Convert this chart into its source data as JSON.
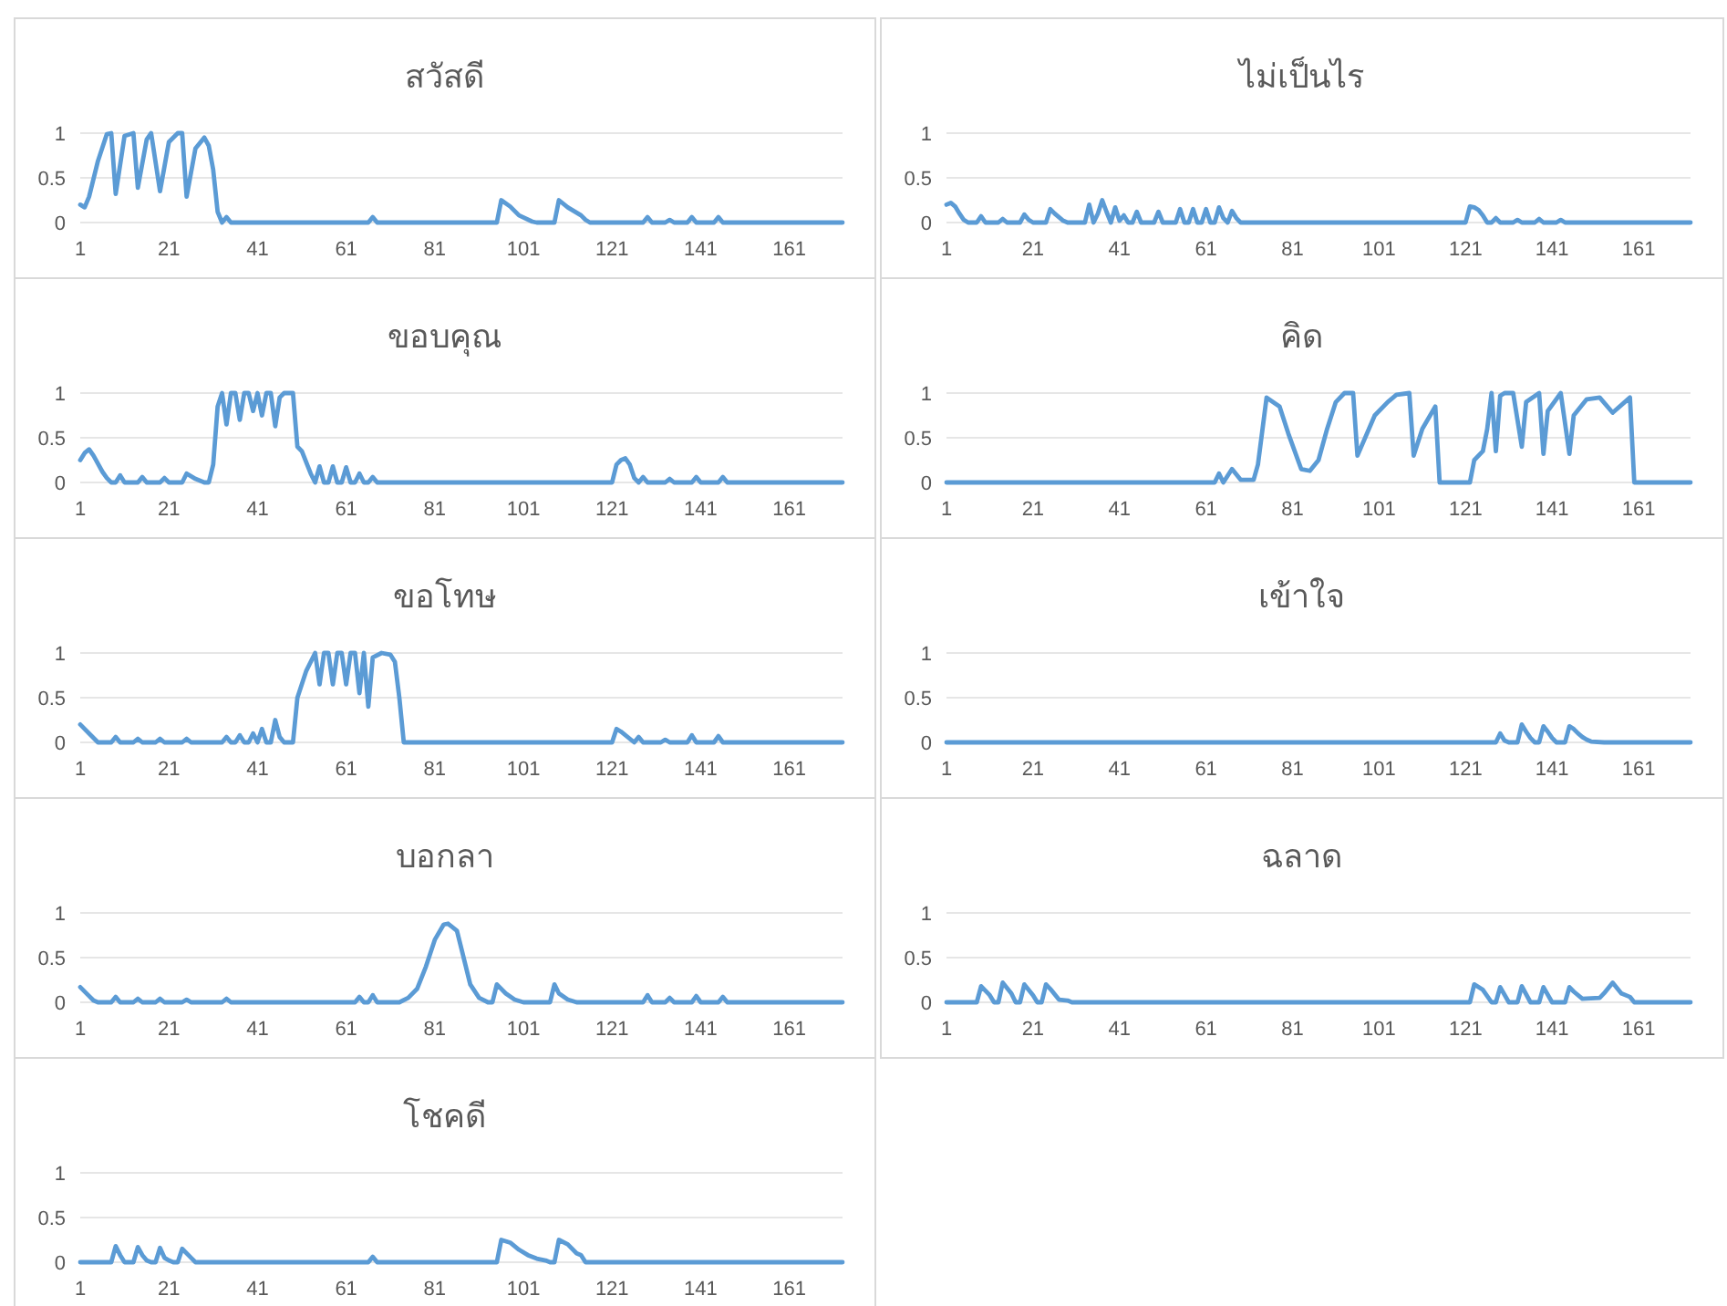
{
  "chart_data": [
    {
      "type": "line",
      "title": "สวัสดี",
      "color": "#5b9bd5",
      "xlim": [
        1,
        173
      ],
      "xticks": [
        1,
        21,
        41,
        61,
        81,
        101,
        121,
        141,
        161
      ],
      "ylim": [
        0,
        1
      ],
      "yticks": [
        0,
        0.5,
        1
      ],
      "grid": "y",
      "x": [
        1,
        2,
        3,
        5,
        7,
        8,
        9,
        11,
        13,
        14,
        16,
        17,
        19,
        21,
        23,
        24,
        25,
        27,
        29,
        30,
        31,
        32,
        33,
        34,
        35,
        66,
        67,
        68,
        95,
        96,
        98,
        100,
        103,
        104,
        108,
        109,
        111,
        114,
        115,
        116,
        128,
        129,
        130,
        133,
        134,
        135,
        138,
        139,
        140,
        144,
        145,
        146,
        173
      ],
      "values": [
        0.2,
        0.17,
        0.29,
        0.69,
        0.99,
        1,
        0.32,
        0.97,
        1,
        0.39,
        0.93,
        1,
        0.35,
        0.9,
        1,
        1,
        0.29,
        0.83,
        0.95,
        0.86,
        0.59,
        0.12,
        0,
        0.06,
        0,
        0,
        0.06,
        0,
        0,
        0.25,
        0.18,
        0.08,
        0.01,
        0,
        0,
        0.25,
        0.17,
        0.08,
        0.03,
        0,
        0,
        0.06,
        0,
        0,
        0.03,
        0,
        0,
        0.06,
        0,
        0,
        0.06,
        0,
        0
      ]
    },
    {
      "type": "line",
      "title": "ไม่เป็นไร",
      "color": "#5b9bd5",
      "xlim": [
        1,
        173
      ],
      "xticks": [
        1,
        21,
        41,
        61,
        81,
        101,
        121,
        141,
        161
      ],
      "ylim": [
        0,
        1
      ],
      "yticks": [
        0,
        0.5,
        1
      ],
      "grid": "y",
      "x": [
        1,
        2,
        3,
        4,
        5,
        6,
        8,
        9,
        10,
        13,
        14,
        15,
        18,
        19,
        20,
        21,
        24,
        25,
        26,
        28,
        29,
        33,
        34,
        35,
        36,
        37,
        38,
        39,
        40,
        41,
        42,
        43,
        44,
        45,
        46,
        49,
        50,
        51,
        54,
        55,
        56,
        57,
        58,
        59,
        60,
        61,
        62,
        63,
        64,
        65,
        66,
        67,
        68,
        69,
        121,
        122,
        123,
        124,
        125,
        126,
        127,
        128,
        129,
        132,
        133,
        134,
        137,
        138,
        139,
        142,
        143,
        144,
        173
      ],
      "values": [
        0.2,
        0.22,
        0.18,
        0.1,
        0.03,
        0,
        0,
        0.07,
        0,
        0,
        0.04,
        0,
        0,
        0.09,
        0.03,
        0,
        0,
        0.15,
        0.1,
        0.02,
        0,
        0,
        0.2,
        0,
        0.1,
        0.25,
        0.12,
        0,
        0.17,
        0.02,
        0.08,
        0,
        0,
        0.12,
        0,
        0,
        0.12,
        0,
        0,
        0.15,
        0,
        0,
        0.15,
        0,
        0,
        0.15,
        0,
        0,
        0.17,
        0.05,
        0,
        0.13,
        0.05,
        0,
        0,
        0.18,
        0.17,
        0.14,
        0.08,
        0,
        0,
        0.05,
        0,
        0,
        0.03,
        0,
        0,
        0.04,
        0,
        0,
        0.03,
        0,
        0
      ]
    },
    {
      "type": "line",
      "title": "ขอบคุณ",
      "color": "#5b9bd5",
      "xlim": [
        1,
        173
      ],
      "xticks": [
        1,
        21,
        41,
        61,
        81,
        101,
        121,
        141,
        161
      ],
      "ylim": [
        0,
        1
      ],
      "yticks": [
        0,
        0.5,
        1
      ],
      "grid": "y",
      "x": [
        1,
        2,
        3,
        4,
        6,
        7,
        8,
        9,
        10,
        11,
        14,
        15,
        16,
        19,
        20,
        21,
        24,
        25,
        27,
        29,
        30,
        31,
        32,
        33,
        34,
        35,
        36,
        37,
        38,
        39,
        40,
        41,
        42,
        43,
        44,
        45,
        46,
        47,
        48,
        49,
        50,
        51,
        53,
        54,
        55,
        56,
        57,
        58,
        59,
        60,
        61,
        62,
        63,
        64,
        65,
        66,
        67,
        68,
        121,
        122,
        123,
        124,
        125,
        126,
        127,
        128,
        129,
        133,
        134,
        135,
        139,
        140,
        141,
        145,
        146,
        147,
        173
      ],
      "values": [
        0.25,
        0.33,
        0.37,
        0.3,
        0.12,
        0.05,
        0,
        0,
        0.08,
        0,
        0,
        0.06,
        0,
        0,
        0.05,
        0,
        0,
        0.1,
        0.04,
        0,
        0,
        0.2,
        0.85,
        1,
        0.65,
        1,
        1,
        0.7,
        1,
        1,
        0.8,
        1,
        0.75,
        1,
        1,
        0.63,
        0.95,
        1,
        1,
        1,
        0.4,
        0.35,
        0.1,
        0,
        0.18,
        0,
        0,
        0.18,
        0,
        0,
        0.17,
        0,
        0,
        0.1,
        0,
        0,
        0.06,
        0,
        0,
        0.2,
        0.25,
        0.27,
        0.2,
        0.05,
        0,
        0.06,
        0,
        0,
        0.04,
        0,
        0,
        0.06,
        0,
        0,
        0.06,
        0,
        0
      ]
    },
    {
      "type": "line",
      "title": "คิด",
      "color": "#5b9bd5",
      "xlim": [
        1,
        173
      ],
      "xticks": [
        1,
        21,
        41,
        61,
        81,
        101,
        121,
        141,
        161
      ],
      "ylim": [
        0,
        1
      ],
      "yticks": [
        0,
        0.5,
        1
      ],
      "grid": "y",
      "x": [
        1,
        63,
        64,
        65,
        67,
        69,
        72,
        73,
        75,
        78,
        80,
        83,
        85,
        87,
        89,
        91,
        93,
        95,
        96,
        100,
        103,
        105,
        108,
        109,
        111,
        114,
        115,
        122,
        123,
        125,
        126,
        127,
        128,
        129,
        130,
        132,
        134,
        135,
        138,
        139,
        140,
        143,
        145,
        146,
        149,
        152,
        155,
        159,
        160,
        173
      ],
      "values": [
        0,
        0,
        0.1,
        0,
        0.15,
        0.03,
        0.03,
        0.2,
        0.95,
        0.85,
        0.55,
        0.15,
        0.13,
        0.25,
        0.6,
        0.9,
        1,
        1,
        0.3,
        0.75,
        0.9,
        0.98,
        1,
        0.3,
        0.6,
        0.85,
        0,
        0,
        0.25,
        0.35,
        0.6,
        1,
        0.35,
        0.97,
        1,
        1,
        0.4,
        0.9,
        1,
        0.32,
        0.8,
        1,
        0.32,
        0.75,
        0.93,
        0.95,
        0.78,
        0.95,
        0,
        0
      ]
    },
    {
      "type": "line",
      "title": "ขอโทษ",
      "color": "#5b9bd5",
      "xlim": [
        1,
        173
      ],
      "xticks": [
        1,
        21,
        41,
        61,
        81,
        101,
        121,
        141,
        161
      ],
      "ylim": [
        0,
        1
      ],
      "yticks": [
        0,
        0.5,
        1
      ],
      "grid": "y",
      "x": [
        1,
        3,
        5,
        8,
        9,
        10,
        13,
        14,
        15,
        18,
        19,
        20,
        24,
        25,
        26,
        33,
        34,
        35,
        36,
        37,
        38,
        39,
        40,
        41,
        42,
        43,
        44,
        45,
        46,
        47,
        49,
        50,
        52,
        54,
        55,
        56,
        57,
        58,
        59,
        60,
        61,
        62,
        63,
        64,
        65,
        66,
        67,
        69,
        71,
        72,
        73,
        74,
        121,
        122,
        123,
        126,
        127,
        128,
        132,
        133,
        134,
        138,
        139,
        140,
        144,
        145,
        146,
        173
      ],
      "values": [
        0.2,
        0.1,
        0,
        0,
        0.06,
        0,
        0,
        0.04,
        0,
        0,
        0.04,
        0,
        0,
        0.04,
        0,
        0,
        0.06,
        0,
        0,
        0.08,
        0,
        0,
        0.1,
        0,
        0.15,
        0,
        0,
        0.25,
        0.06,
        0,
        0,
        0.5,
        0.8,
        1,
        0.65,
        1,
        1,
        0.65,
        1,
        1,
        0.65,
        1,
        1,
        0.55,
        1,
        0.4,
        0.95,
        1,
        0.98,
        0.9,
        0.5,
        0,
        0,
        0.15,
        0.12,
        0,
        0.06,
        0,
        0,
        0.03,
        0,
        0,
        0.08,
        0,
        0,
        0.07,
        0,
        0
      ]
    },
    {
      "type": "line",
      "title": "เข้าใจ",
      "color": "#5b9bd5",
      "xlim": [
        1,
        173
      ],
      "xticks": [
        1,
        21,
        41,
        61,
        81,
        101,
        121,
        141,
        161
      ],
      "ylim": [
        0,
        1
      ],
      "yticks": [
        0,
        0.5,
        1
      ],
      "grid": "y",
      "x": [
        1,
        128,
        129,
        130,
        131,
        133,
        134,
        135,
        136,
        137,
        138,
        139,
        140,
        141,
        142,
        144,
        145,
        146,
        147,
        148,
        149,
        150,
        153,
        173
      ],
      "values": [
        0,
        0,
        0.1,
        0.02,
        0,
        0,
        0.2,
        0.12,
        0.05,
        0,
        0,
        0.18,
        0.12,
        0.05,
        0,
        0,
        0.18,
        0.15,
        0.1,
        0.06,
        0.03,
        0.01,
        0,
        0
      ]
    },
    {
      "type": "line",
      "title": "บอกลา",
      "color": "#5b9bd5",
      "xlim": [
        1,
        173
      ],
      "xticks": [
        1,
        21,
        41,
        61,
        81,
        101,
        121,
        141,
        161
      ],
      "ylim": [
        0,
        1
      ],
      "yticks": [
        0,
        0.5,
        1
      ],
      "grid": "y",
      "x": [
        1,
        3,
        4,
        5,
        8,
        9,
        10,
        13,
        14,
        15,
        18,
        19,
        20,
        24,
        25,
        26,
        33,
        34,
        35,
        63,
        64,
        65,
        66,
        67,
        68,
        73,
        75,
        77,
        79,
        81,
        83,
        84,
        86,
        87,
        89,
        91,
        93,
        94,
        95,
        97,
        99,
        101,
        107,
        108,
        109,
        111,
        113,
        128,
        129,
        130,
        133,
        134,
        135,
        139,
        140,
        141,
        145,
        146,
        147,
        173
      ],
      "values": [
        0.17,
        0.07,
        0.02,
        0,
        0,
        0.06,
        0,
        0,
        0.04,
        0,
        0,
        0.04,
        0,
        0,
        0.03,
        0,
        0,
        0.04,
        0,
        0,
        0.06,
        0,
        0,
        0.08,
        0,
        0,
        0.05,
        0.15,
        0.4,
        0.7,
        0.87,
        0.88,
        0.8,
        0.6,
        0.2,
        0.05,
        0,
        0,
        0.2,
        0.1,
        0.03,
        0,
        0,
        0.2,
        0.1,
        0.03,
        0,
        0,
        0.08,
        0,
        0,
        0.05,
        0,
        0,
        0.07,
        0,
        0,
        0.06,
        0,
        0
      ]
    },
    {
      "type": "line",
      "title": "ฉลาด",
      "color": "#5b9bd5",
      "xlim": [
        1,
        173
      ],
      "xticks": [
        1,
        21,
        41,
        61,
        81,
        101,
        121,
        141,
        161
      ],
      "ylim": [
        0,
        1
      ],
      "yticks": [
        0,
        0.5,
        1
      ],
      "grid": "y",
      "x": [
        1,
        8,
        9,
        11,
        12,
        13,
        14,
        16,
        17,
        18,
        19,
        21,
        22,
        23,
        24,
        25,
        27,
        29,
        30,
        122,
        123,
        125,
        127,
        128,
        129,
        131,
        133,
        134,
        136,
        138,
        139,
        141,
        144,
        145,
        146,
        148,
        152,
        153,
        155,
        157,
        159,
        160,
        173
      ],
      "values": [
        0,
        0,
        0.18,
        0.08,
        0,
        0,
        0.22,
        0.1,
        0,
        0,
        0.2,
        0.08,
        0,
        0,
        0.2,
        0.15,
        0.03,
        0.02,
        0,
        0,
        0.2,
        0.14,
        0,
        0,
        0.17,
        0,
        0,
        0.18,
        0,
        0,
        0.17,
        0,
        0,
        0.17,
        0.12,
        0.04,
        0.05,
        0.1,
        0.22,
        0.1,
        0.06,
        0,
        0
      ]
    },
    {
      "type": "line",
      "title": "โชคดี",
      "color": "#5b9bd5",
      "xlim": [
        1,
        173
      ],
      "xticks": [
        1,
        21,
        41,
        61,
        81,
        101,
        121,
        141,
        161
      ],
      "ylim": [
        0,
        1
      ],
      "yticks": [
        0,
        0.5,
        1
      ],
      "grid": "y",
      "x": [
        1,
        8,
        9,
        10,
        11,
        13,
        14,
        15,
        16,
        17,
        18,
        19,
        20,
        21,
        22,
        23,
        24,
        26,
        27,
        66,
        67,
        68,
        95,
        96,
        98,
        100,
        102,
        104,
        106,
        107,
        108,
        109,
        111,
        113,
        114,
        115,
        173
      ],
      "values": [
        0,
        0,
        0.18,
        0.08,
        0,
        0,
        0.17,
        0.08,
        0.02,
        0,
        0,
        0.16,
        0.05,
        0.02,
        0,
        0,
        0.15,
        0.05,
        0,
        0,
        0.06,
        0,
        0,
        0.25,
        0.22,
        0.14,
        0.08,
        0.04,
        0.02,
        0,
        0,
        0.25,
        0.2,
        0.1,
        0.08,
        0,
        0
      ]
    }
  ]
}
